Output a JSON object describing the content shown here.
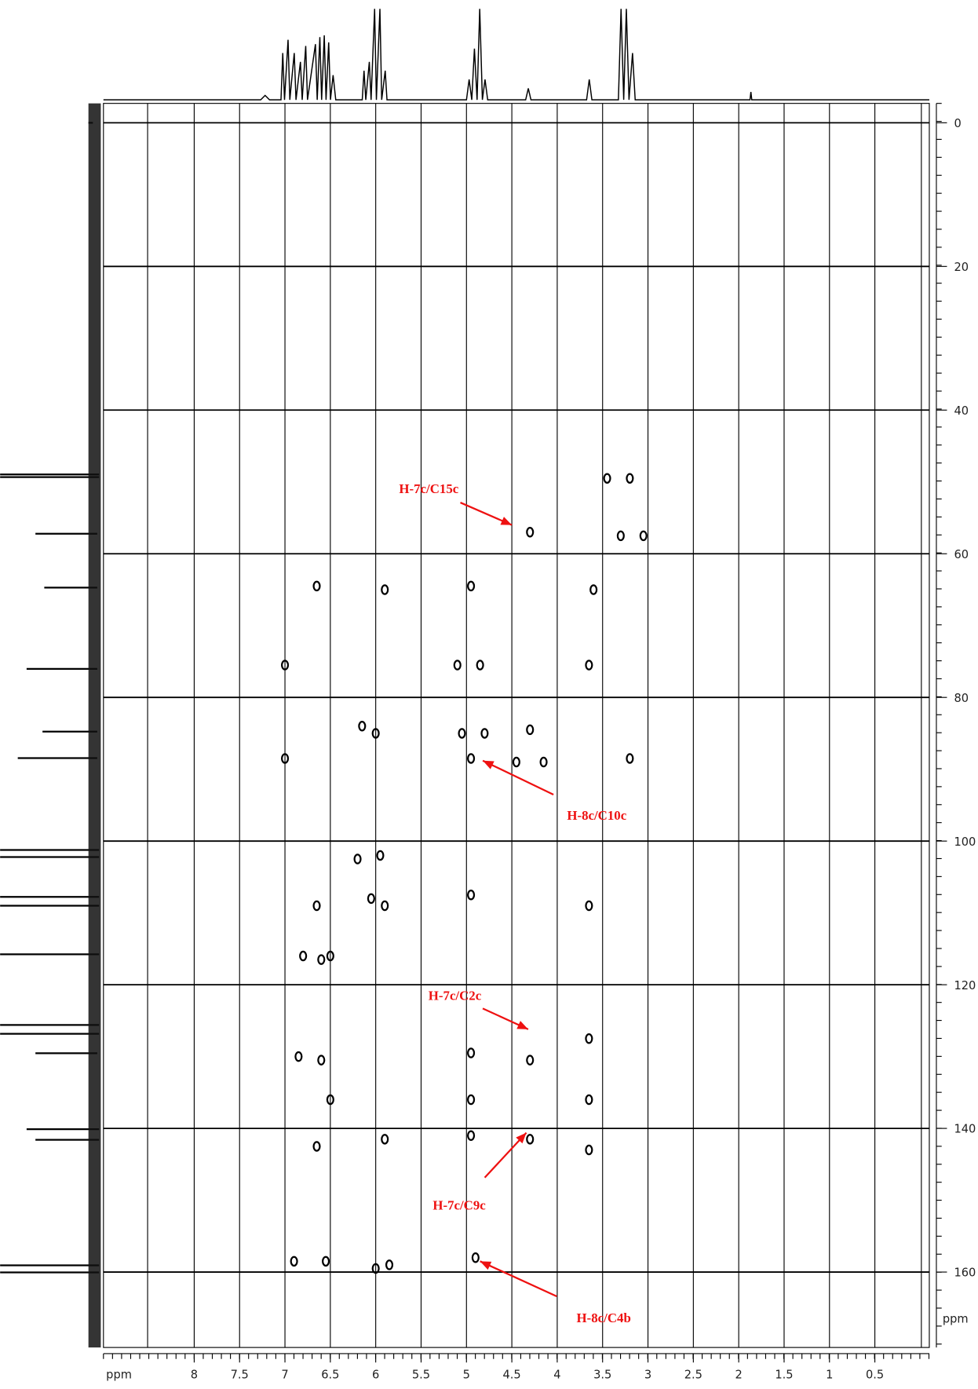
{
  "chart_data": {
    "type": "scatter",
    "x_label": "ppm",
    "y_label": "ppm",
    "x_reversed": true,
    "y_reversed": true,
    "xlim": [
      9.0,
      -0.1
    ],
    "ylim": [
      -2.7,
      170.5
    ],
    "xticks": [
      8.0,
      7.5,
      7.0,
      6.5,
      6.0,
      5.5,
      5.0,
      4.5,
      4.0,
      3.5,
      3.0,
      2.5,
      2.0,
      1.5,
      1.0,
      0.5
    ],
    "yticks": [
      0,
      20,
      40,
      60,
      80,
      100,
      120,
      140,
      160
    ],
    "grid": true,
    "color": "#000000",
    "annotation_color": "#ee1111",
    "x": [
      3.45,
      3.2,
      4.3,
      3.3,
      3.05,
      6.65,
      5.9,
      4.95,
      3.6,
      7.0,
      5.1,
      4.85,
      3.65,
      6.15,
      6.0,
      5.05,
      4.8,
      4.3,
      3.2,
      7.0,
      4.95,
      4.45,
      4.15,
      6.2,
      5.95,
      6.05,
      5.9,
      4.95,
      3.65,
      6.65,
      6.8,
      6.6,
      6.5,
      6.85,
      6.6,
      4.95,
      4.3,
      3.65,
      6.5,
      4.95,
      3.65,
      6.65,
      5.9,
      4.95,
      4.3,
      3.65,
      6.9,
      6.55,
      6.0,
      5.85,
      4.9
    ],
    "values": [
      49.5,
      49.5,
      57,
      57.5,
      57.5,
      64.5,
      65,
      64.5,
      65,
      75.5,
      75.5,
      75.5,
      75.5,
      84,
      85,
      85,
      85,
      84.5,
      88.5,
      88.5,
      88.5,
      89,
      89,
      102.5,
      102,
      108,
      109,
      107.5,
      109,
      109,
      116,
      116.5,
      116,
      130,
      130.5,
      129.5,
      130.5,
      127.5,
      136,
      136,
      136,
      142.5,
      141.5,
      141,
      141.5,
      143,
      158.5,
      158.5,
      159.5,
      159,
      158
    ],
    "annotations": [
      {
        "text": "H-7c/C15c",
        "x": 4.5,
        "y": 56
      },
      {
        "text": "H-8c/C10c",
        "x": 4.82,
        "y": 88.8
      },
      {
        "text": "H-7c/C2c",
        "x": 4.32,
        "y": 126.2
      },
      {
        "text": "H-7c/C9c",
        "x": 4.34,
        "y": 140.6
      },
      {
        "text": "H-8c/C4b",
        "x": 4.85,
        "y": 158.5
      }
    ]
  }
}
